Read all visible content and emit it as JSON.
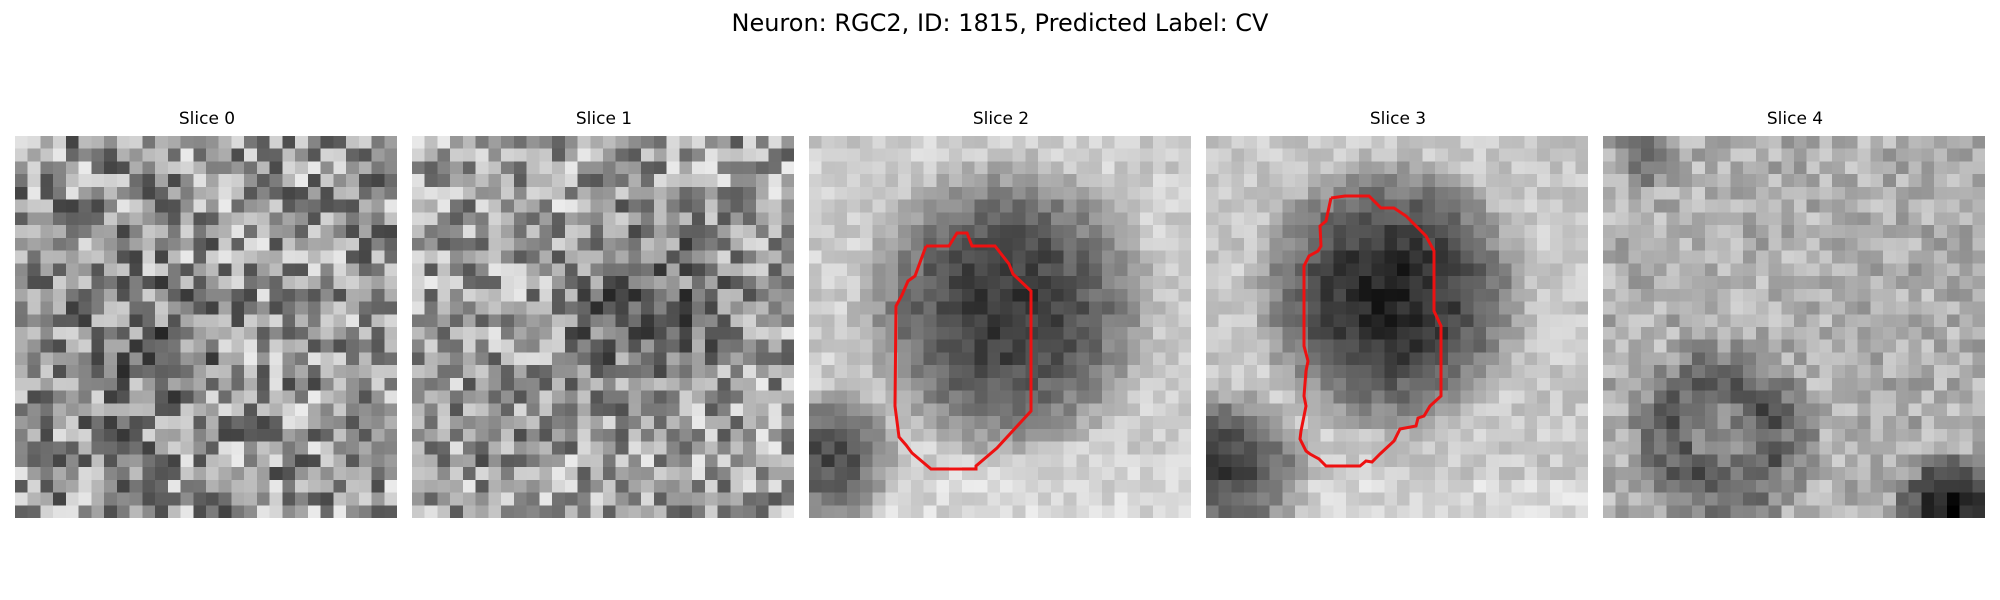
{
  "figure": {
    "title": "Neuron: RGC2, ID: 1815, Predicted Label: CV",
    "background": "#ffffff",
    "contour_color": "#ee1111"
  },
  "panels": [
    {
      "title": "Slice 0",
      "has_contour": false
    },
    {
      "title": "Slice 1",
      "has_contour": false
    },
    {
      "title": "Slice 2",
      "has_contour": true
    },
    {
      "title": "Slice 3",
      "has_contour": true
    },
    {
      "title": "Slice 4",
      "has_contour": false
    }
  ]
}
